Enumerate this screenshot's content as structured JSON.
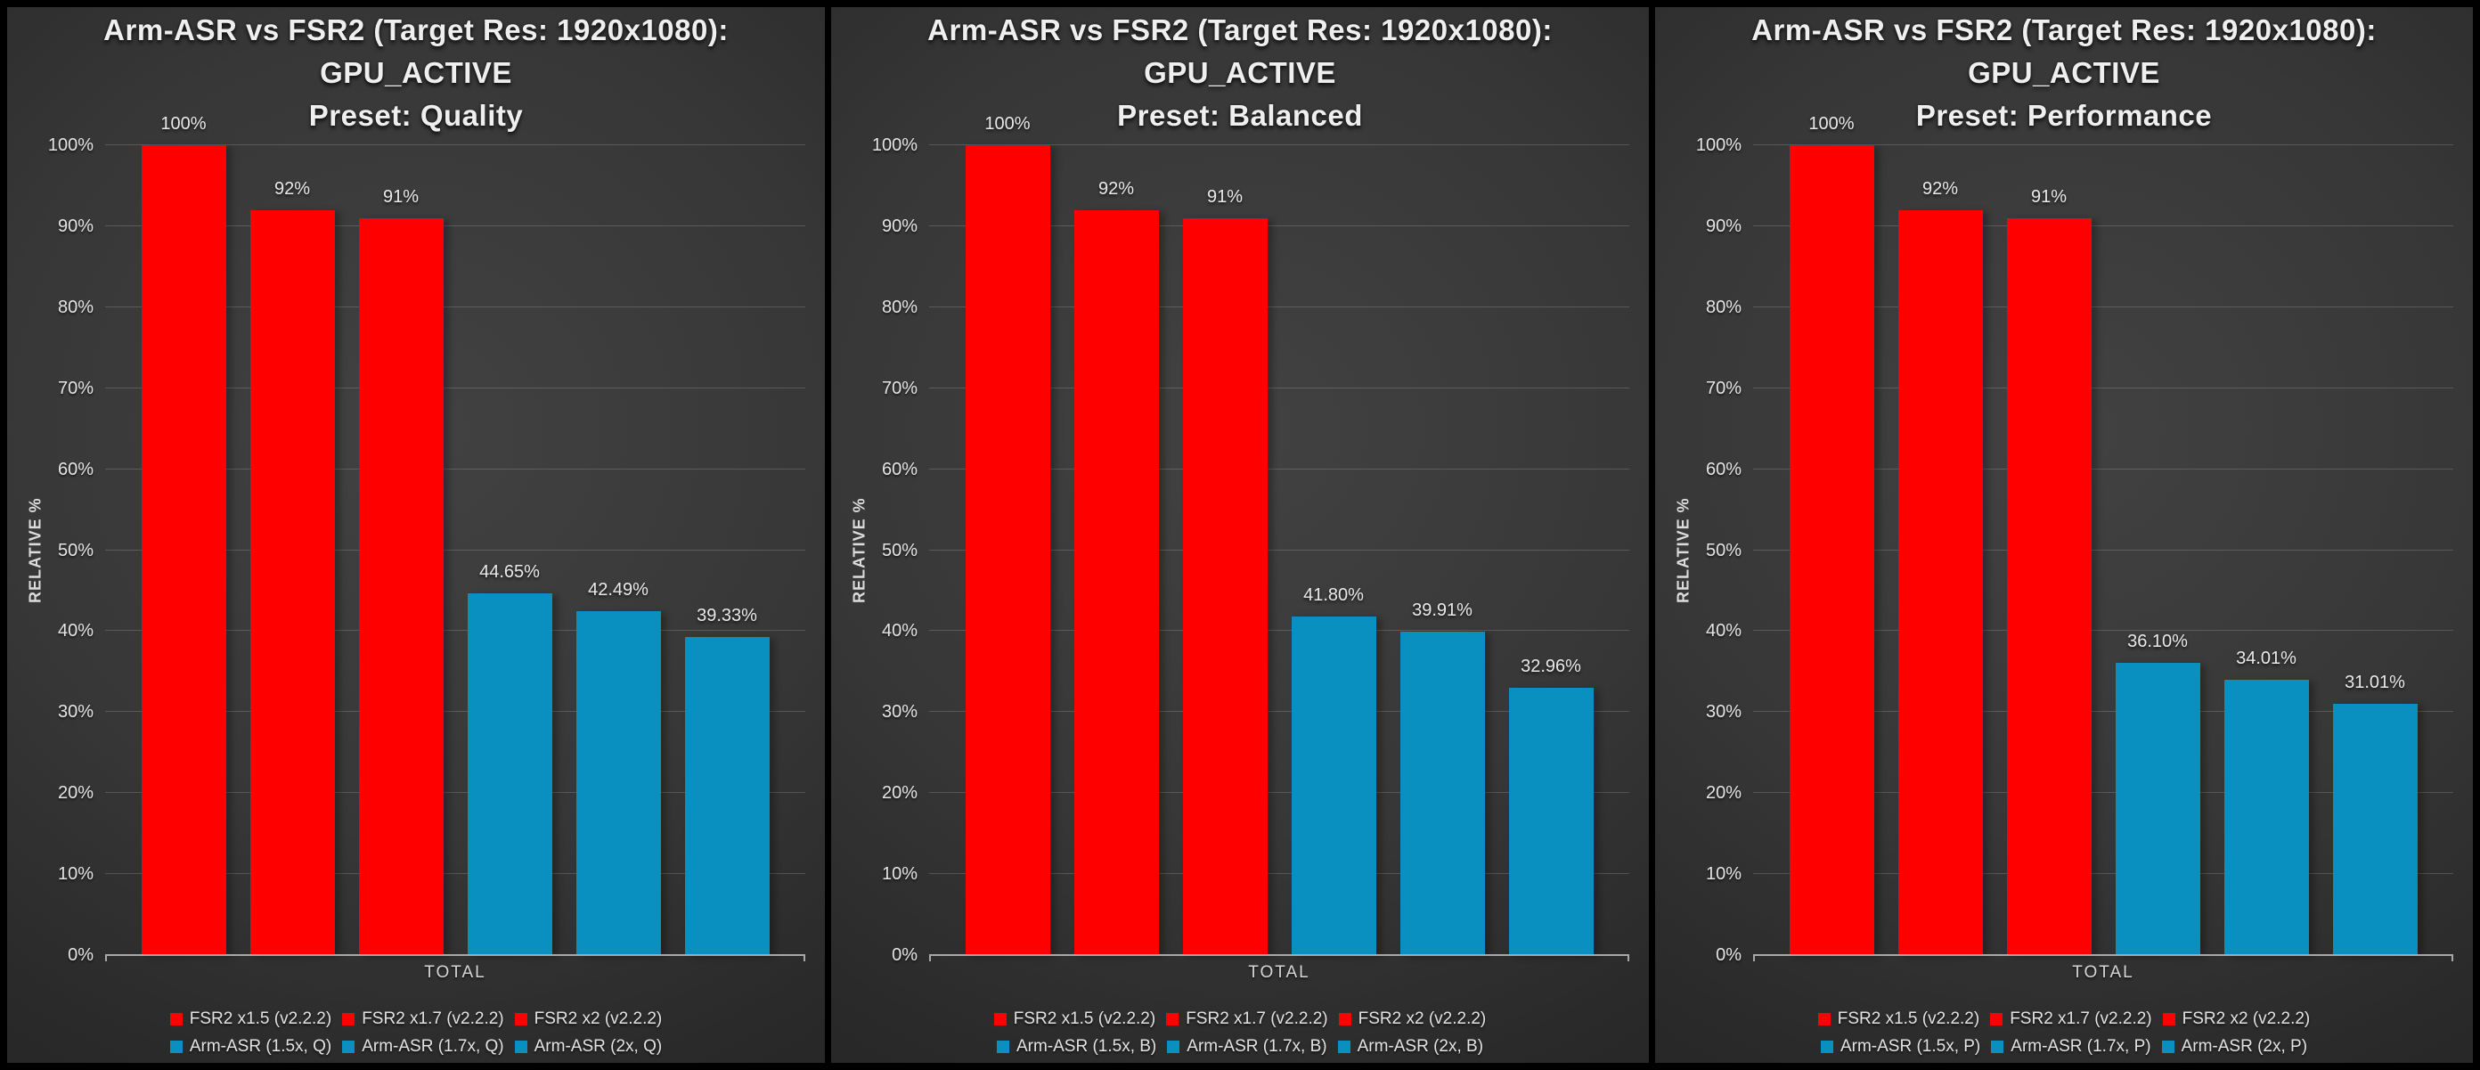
{
  "colors": {
    "fsr2_red": "#fe0000",
    "armasr_blue": "#0a90c0",
    "grid_line": "rgba(255,255,255,0.17)",
    "axis_line": "#a8a8a8",
    "text": "#e6e6e6",
    "background_center": "#424242",
    "background_edge": "#212121"
  },
  "chart_data": [
    {
      "type": "bar",
      "title": "Arm-ASR vs FSR2 (Target Res: 1920x1080): GPU_ACTIVE — Preset: Quality",
      "title_lines": [
        "Arm-ASR vs FSR2 (Target Res: 1920x1080):",
        "GPU_ACTIVE",
        "Preset: Quality"
      ],
      "categories": [
        "TOTAL"
      ],
      "series": [
        {
          "name": "FSR2 x1.5 (v2.2.2)",
          "values": [
            100
          ],
          "label": "100%",
          "color": "#fe0000"
        },
        {
          "name": "FSR2 x1.7 (v2.2.2)",
          "values": [
            92
          ],
          "label": "92%",
          "color": "#fe0000"
        },
        {
          "name": "FSR2 x2 (v2.2.2)",
          "values": [
            91
          ],
          "label": "91%",
          "color": "#fe0000"
        },
        {
          "name": "Arm-ASR (1.5x, Q)",
          "values": [
            44.65
          ],
          "label": "44.65%",
          "color": "#0a90c0"
        },
        {
          "name": "Arm-ASR (1.7x, Q)",
          "values": [
            42.49
          ],
          "label": "42.49%",
          "color": "#0a90c0"
        },
        {
          "name": "Arm-ASR (2x, Q)",
          "values": [
            39.33
          ],
          "label": "39.33%",
          "color": "#0a90c0"
        }
      ],
      "xlabel_category": "TOTAL",
      "ylabel": "RELATIVE %",
      "ylim": [
        0,
        100
      ],
      "y_tick_step": 10,
      "y_tick_suffix": "%",
      "grid": true,
      "legend_position": "bottom"
    },
    {
      "type": "bar",
      "title": "Arm-ASR vs FSR2 (Target Res: 1920x1080): GPU_ACTIVE — Preset: Balanced",
      "title_lines": [
        "Arm-ASR vs FSR2 (Target Res: 1920x1080):",
        "GPU_ACTIVE",
        "Preset: Balanced"
      ],
      "categories": [
        "TOTAL"
      ],
      "series": [
        {
          "name": "FSR2 x1.5 (v2.2.2)",
          "values": [
            100
          ],
          "label": "100%",
          "color": "#fe0000"
        },
        {
          "name": "FSR2 x1.7 (v2.2.2)",
          "values": [
            92
          ],
          "label": "92%",
          "color": "#fe0000"
        },
        {
          "name": "FSR2 x2 (v2.2.2)",
          "values": [
            91
          ],
          "label": "91%",
          "color": "#fe0000"
        },
        {
          "name": "Arm-ASR (1.5x, B)",
          "values": [
            41.8
          ],
          "label": "41.80%",
          "color": "#0a90c0"
        },
        {
          "name": "Arm-ASR (1.7x, B)",
          "values": [
            39.91
          ],
          "label": "39.91%",
          "color": "#0a90c0"
        },
        {
          "name": "Arm-ASR (2x, B)",
          "values": [
            32.96
          ],
          "label": "32.96%",
          "color": "#0a90c0"
        }
      ],
      "xlabel_category": "TOTAL",
      "ylabel": "RELATIVE %",
      "ylim": [
        0,
        100
      ],
      "y_tick_step": 10,
      "y_tick_suffix": "%",
      "grid": true,
      "legend_position": "bottom"
    },
    {
      "type": "bar",
      "title": "Arm-ASR vs FSR2 (Target Res: 1920x1080): GPU_ACTIVE — Preset: Performance",
      "title_lines": [
        "Arm-ASR vs FSR2 (Target Res: 1920x1080):",
        "GPU_ACTIVE",
        "Preset: Performance"
      ],
      "categories": [
        "TOTAL"
      ],
      "series": [
        {
          "name": "FSR2 x1.5 (v2.2.2)",
          "values": [
            100
          ],
          "label": "100%",
          "color": "#fe0000"
        },
        {
          "name": "FSR2 x1.7 (v2.2.2)",
          "values": [
            92
          ],
          "label": "92%",
          "color": "#fe0000"
        },
        {
          "name": "FSR2 x2 (v2.2.2)",
          "values": [
            91
          ],
          "label": "91%",
          "color": "#fe0000"
        },
        {
          "name": "Arm-ASR (1.5x, P)",
          "values": [
            36.1
          ],
          "label": "36.10%",
          "color": "#0a90c0"
        },
        {
          "name": "Arm-ASR (1.7x, P)",
          "values": [
            34.01
          ],
          "label": "34.01%",
          "color": "#0a90c0"
        },
        {
          "name": "Arm-ASR (2x, P)",
          "values": [
            31.01
          ],
          "label": "31.01%",
          "color": "#0a90c0"
        }
      ],
      "xlabel_category": "TOTAL",
      "ylabel": "RELATIVE %",
      "ylim": [
        0,
        100
      ],
      "y_tick_step": 10,
      "y_tick_suffix": "%",
      "grid": true,
      "legend_position": "bottom"
    }
  ]
}
